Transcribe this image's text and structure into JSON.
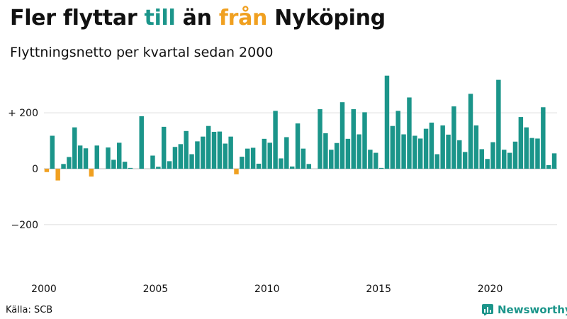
{
  "title": {
    "part1": "Fler flyttar ",
    "teal_word": "till",
    "part2": " än ",
    "orange_word": "från",
    "part3": " Nyköping"
  },
  "subtitle": "Flyttningsnetto per kvartal sedan 2000",
  "source": "Källa: SCB",
  "brand": {
    "name": "Newsworthy",
    "icon": "newsworthy-logo-icon"
  },
  "colors": {
    "positive": "#1b958a",
    "negative": "#f0a020",
    "grid": "#dddddd",
    "text": "#111111"
  },
  "chart_data": {
    "type": "bar",
    "title": "Fler flyttar till än från Nyköping",
    "subtitle": "Flyttningsnetto per kvartal sedan 2000",
    "xlabel": "",
    "ylabel": "",
    "ylim": [
      -360,
      350
    ],
    "yticks": [
      200,
      0,
      -200
    ],
    "ytick_labels": [
      "+ 200",
      "0",
      "−200"
    ],
    "x_start_year": 2000,
    "x_end": 2023.0,
    "xticks": [
      2000,
      2005,
      2010,
      2015,
      2020
    ],
    "xtick_labels": [
      "2000",
      "2005",
      "2010",
      "2015",
      "2020"
    ],
    "periods_per_year": 4,
    "values": [
      -12,
      118,
      -42,
      17,
      42,
      148,
      83,
      73,
      -28,
      83,
      0,
      76,
      32,
      93,
      25,
      3,
      0,
      188,
      0,
      47,
      7,
      150,
      27,
      78,
      88,
      135,
      52,
      98,
      115,
      153,
      132,
      133,
      90,
      115,
      -20,
      43,
      72,
      75,
      18,
      107,
      93,
      207,
      37,
      113,
      8,
      162,
      72,
      17,
      0,
      213,
      127,
      68,
      92,
      238,
      107,
      213,
      123,
      202,
      68,
      57,
      3,
      333,
      153,
      207,
      123,
      255,
      118,
      108,
      143,
      165,
      52,
      155,
      122,
      223,
      102,
      60,
      268,
      155,
      70,
      35,
      95,
      318,
      68,
      57,
      97,
      185,
      148,
      110,
      108,
      220,
      13,
      55
    ]
  }
}
